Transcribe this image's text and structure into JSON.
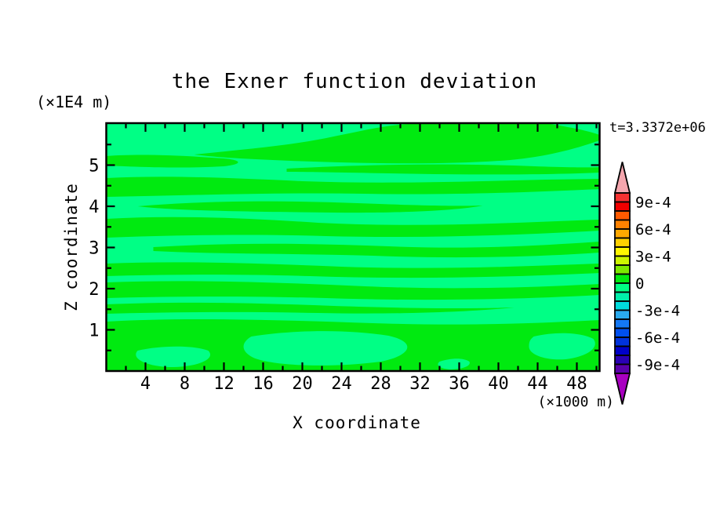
{
  "labels": {
    "title": "the Exner function deviation",
    "time": "t=3.3372e+06",
    "x_axis": "X coordinate",
    "z_axis": "Z coordinate",
    "x_unit": "(×1000 m)",
    "y_unit": "(×1E4 m)"
  },
  "axes": {
    "x": {
      "min": 0,
      "max": 50.4,
      "major": [
        4,
        8,
        12,
        16,
        20,
        24,
        28,
        32,
        36,
        40,
        44,
        48
      ],
      "minor": [
        2,
        6,
        10,
        14,
        18,
        22,
        26,
        30,
        34,
        38,
        42,
        46,
        50
      ]
    },
    "y": {
      "min": 0,
      "max": 6.02,
      "major": [
        1,
        2,
        3,
        4,
        5
      ],
      "minor": [
        0.5,
        1.5,
        2.5,
        3.5,
        4.5,
        5.5
      ]
    }
  },
  "colorbar": {
    "labels": [
      "9e-4",
      "6e-4",
      "3e-4",
      "0",
      "-3e-4",
      "-6e-4",
      "-9e-4"
    ],
    "label_boundary_indices": [
      1,
      4,
      7,
      10,
      13,
      16,
      19
    ],
    "segment_colors": [
      "#f53232",
      "#f00000",
      "#ff5a00",
      "#ff8200",
      "#ffa800",
      "#ffd000",
      "#fff600",
      "#ccf500",
      "#7ce800",
      "#00ea10",
      "#00ff85",
      "#00eeaa",
      "#00dcdc",
      "#2aaaee",
      "#1478f5",
      "#0050f0",
      "#0032dc",
      "#0000c8",
      "#2a00b4",
      "#5a00aa"
    ],
    "over_color": "#f4a6ae",
    "under_color": "#a800c0"
  },
  "plot": {
    "background_color": "#00ff85",
    "band_color": "#00ea10",
    "bands": [
      "M112 40 C180 33 240 28 290 17 C330 9 360 1 405 0 L560 0 C590 5 612 9 629 15 L629 22 C598 33 560 43 515 47 C425 54 320 51 235 48 C185 46 143 44 112 40 Z",
      "M0 42 C40 39 95 41 150 45 C172 47 176 52 150 55 C100 58 40 56 0 54 Z",
      "M230 58 C320 53 420 51 520 54 C570 56 610 57 629 56 L629 63 C560 66 460 66 360 64 C310 63 255 62 230 62 Z",
      "M0 70 C80 66 160 70 250 74 C360 78 470 74 560 72 L629 71 L629 84 C540 88 440 92 330 90 C220 88 110 92 0 94 Z",
      "M40 106 C120 99 220 98 320 102 C400 105 450 106 480 105 C450 111 380 115 290 114 C190 113 90 112 40 106 Z",
      "M0 122 C90 117 180 121 270 127 C390 133 500 128 629 123 L629 137 C520 143 400 147 280 144 C180 141 80 143 0 146 Z",
      "M60 158 C160 152 260 153 360 157 C460 161 540 157 629 151 L629 165 C540 171 440 173 340 169 C240 166 140 167 60 163 Z",
      "M0 179 C100 175 200 179 300 183 C420 187 520 183 629 179 L629 191 C500 197 380 199 260 195 C160 192 70 193 0 195 Z",
      "M0 203 C110 199 220 203 330 208 C450 213 550 209 629 205 L629 219 C520 225 400 227 280 223 C170 220 80 221 0 223 Z",
      "M0 231 C90 227 190 229 290 233 C380 236 460 237 520 235 C460 241 370 244 270 242 C170 240 80 241 0 243 Z",
      "M0 253 C100 247 220 251 340 255 C460 259 550 255 629 251 L629 316 L0 316 Z M40 290 C70 283 112 283 130 290 C140 300 120 310 85 311 C55 311 30 301 40 290 Z M185 272 C240 263 310 263 360 271 C396 279 390 296 350 304 C290 312 218 310 190 300 C171 292 171 280 185 272 Z M545 272 C575 265 606 267 621 275 C629 285 616 297 586 301 C560 303 539 295 539 285 C539 279 540 276 545 272 Z M425 304 C440 299 456 299 463 304 C466 310 452 314 438 314 C427 313 419 309 425 304 Z"
    ]
  },
  "chart_data": {
    "type": "heatmap",
    "subtype": "filled_contour",
    "title": "the Exner function deviation",
    "time_annotation": "t=3.3372e+06",
    "xlabel": "X coordinate",
    "x_unit": "(×1000 m)",
    "xlim": [
      0,
      50.4
    ],
    "x_ticks": [
      4,
      8,
      12,
      16,
      20,
      24,
      28,
      32,
      36,
      40,
      44,
      48
    ],
    "x_minor_tick_step": 2,
    "ylabel": "Z coordinate",
    "y_unit": "(×1E4 m)",
    "ylim": [
      0,
      6
    ],
    "y_ticks": [
      1,
      2,
      3,
      4,
      5
    ],
    "y_minor_tick_step": 0.5,
    "grid": false,
    "legend_position": "right vertical colorbar with over/under arrow tips",
    "colorbar_min": -0.001,
    "colorbar_max": 0.001,
    "contour_interval": 0.0001,
    "colorbar_tick_labels": [
      "9e-4",
      "6e-4",
      "3e-4",
      "0",
      "-3e-4",
      "-6e-4",
      "-9e-4"
    ],
    "visible_value_bands": [
      {
        "range": [
          0,
          0.0001
        ],
        "color": "#00ea10",
        "description": "slightly positive Exner deviation (wavy horizontal bands)"
      },
      {
        "range": [
          -0.0001,
          0
        ],
        "color": "#00ff85",
        "description": "slightly negative Exner deviation (background and lenses)"
      }
    ],
    "description": "Horizontally layered wave pattern; field values stay within roughly ±2e-4 so only the two contour bands adjacent to zero are visible across the whole domain."
  }
}
